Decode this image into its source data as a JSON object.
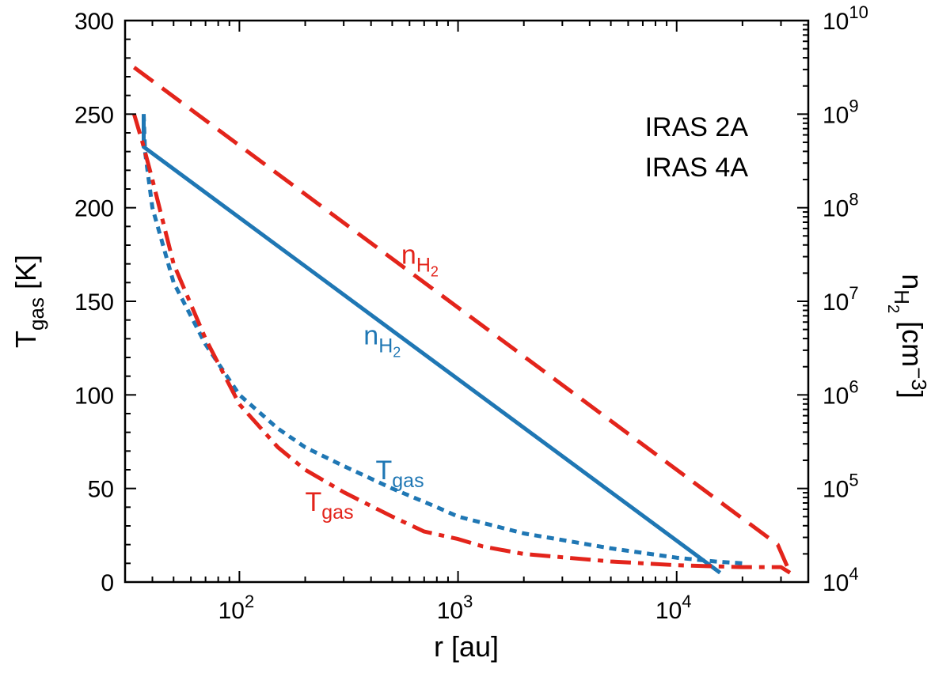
{
  "chart_data": {
    "type": "line",
    "xlabel": {
      "main": "r [au]"
    },
    "ylabel_left": {
      "base": "T",
      "sub": "gas",
      "unit": " [K]"
    },
    "ylabel_right": {
      "base": "n",
      "sub": "H",
      "subsub": "2",
      "unit": " [cm",
      "exp": "−3",
      "close": "]"
    },
    "xscale": "log",
    "xlim": [
      30,
      40000
    ],
    "ylim_left": [
      0,
      300
    ],
    "ylim_right_log10": [
      4,
      10
    ],
    "left_ticks": [
      "0",
      "50",
      "100",
      "150",
      "200",
      "250",
      "300"
    ],
    "left_tick_values": [
      0,
      50,
      100,
      150,
      200,
      250,
      300
    ],
    "x_ticks": [
      {
        "value": 100,
        "base": "10",
        "exp": "2"
      },
      {
        "value": 1000,
        "base": "10",
        "exp": "3"
      },
      {
        "value": 10000,
        "base": "10",
        "exp": "4"
      }
    ],
    "right_ticks": [
      {
        "value_log10": 4,
        "base": "10",
        "exp": "4"
      },
      {
        "value_log10": 5,
        "base": "10",
        "exp": "5"
      },
      {
        "value_log10": 6,
        "base": "10",
        "exp": "6"
      },
      {
        "value_log10": 7,
        "base": "10",
        "exp": "7"
      },
      {
        "value_log10": 8,
        "base": "10",
        "exp": "8"
      },
      {
        "value_log10": 9,
        "base": "10",
        "exp": "9"
      },
      {
        "value_log10": 10,
        "base": "10",
        "exp": "10"
      }
    ],
    "legend": [
      {
        "name": "IRAS 2A",
        "color": "#1f77b4"
      },
      {
        "name": "IRAS 4A",
        "color": "#e3241b"
      }
    ],
    "series": [
      {
        "name": "IRAS 2A n_H2",
        "axis": "right",
        "style": "solid",
        "color": "#1f77b4",
        "x": [
          36.5,
          36.5,
          15800
        ],
        "y_log10": [
          9.0,
          8.65,
          4.1
        ]
      },
      {
        "name": "IRAS 4A n_H2",
        "axis": "right",
        "style": "dashed",
        "color": "#e3241b",
        "x": [
          33,
          29000,
          33000
        ],
        "y_log10": [
          9.5,
          4.4,
          4.1
        ]
      },
      {
        "name": "IRAS 2A T_gas",
        "axis": "left",
        "style": "dotted",
        "color": "#1f77b4",
        "x": [
          36.5,
          37,
          40,
          50,
          70,
          100,
          150,
          200,
          300,
          500,
          800,
          1000,
          2000,
          5000,
          10000,
          15000,
          20000
        ],
        "y": [
          250,
          230,
          200,
          160,
          127,
          100,
          82,
          72,
          62,
          50,
          40,
          35,
          26,
          18,
          13,
          11,
          10
        ]
      },
      {
        "name": "IRAS 4A T_gas",
        "axis": "left",
        "style": "dashdot",
        "color": "#e3241b",
        "x": [
          33,
          36,
          40,
          50,
          70,
          100,
          150,
          200,
          300,
          500,
          700,
          1000,
          1300,
          2000,
          5000,
          10000,
          20000,
          30000,
          33000
        ],
        "y": [
          250,
          235,
          215,
          170,
          130,
          95,
          72,
          60,
          48,
          35,
          27,
          23,
          19,
          15,
          11,
          9,
          8,
          8,
          5
        ]
      }
    ],
    "annotations": [
      {
        "id": "ann-red-n",
        "base": "n",
        "sub": "H",
        "subsub": "2",
        "color": "#e3241b",
        "x": 550,
        "y_left": 170
      },
      {
        "id": "ann-blue-n",
        "base": "n",
        "sub": "H",
        "subsub": "2",
        "color": "#1f77b4",
        "x": 370,
        "y_left": 127
      },
      {
        "id": "ann-blue-t",
        "base": "T",
        "sub": "gas",
        "color": "#1f77b4",
        "x": 420,
        "y_left": 55
      },
      {
        "id": "ann-red-t",
        "base": "T",
        "sub": "gas",
        "color": "#e3241b",
        "x": 200,
        "y_left": 38
      }
    ]
  }
}
